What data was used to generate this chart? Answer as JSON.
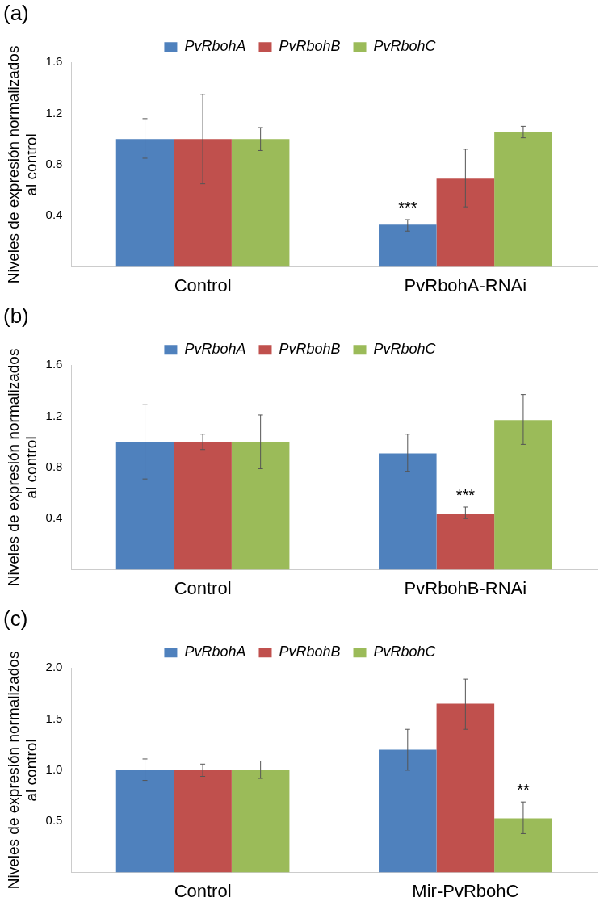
{
  "chart_data": [
    {
      "type": "bar",
      "title": "(a)",
      "ylabel": "Niveles de expresión normalizados al control",
      "categories": [
        "Control",
        "PvRbohA-RNAi"
      ],
      "series": [
        {
          "name": "PvRbohA",
          "color": "#4f81bd",
          "values": [
            1.0,
            0.33
          ],
          "errors": [
            [
              0.85,
              1.16
            ],
            [
              0.28,
              0.37
            ]
          ]
        },
        {
          "name": "PvRbohB",
          "color": "#c0504d",
          "values": [
            1.0,
            0.69
          ],
          "errors": [
            [
              0.65,
              1.35
            ],
            [
              0.47,
              0.92
            ]
          ]
        },
        {
          "name": "PvRbohC",
          "color": "#9bbb59",
          "values": [
            1.0,
            1.055
          ],
          "errors": [
            [
              0.91,
              1.09
            ],
            [
              1.01,
              1.1
            ]
          ]
        }
      ],
      "ylim": [
        0,
        1.6
      ],
      "yticks": [
        {
          "value": 0,
          "label": null
        },
        0.4,
        0.8,
        1.2,
        1.6
      ],
      "grid": false,
      "legend": "top",
      "annotations": [
        "***"
      ]
    },
    {
      "type": "bar",
      "title": "(b)",
      "ylabel": "Niveles de expresión normalizados al control",
      "categories": [
        "Control",
        "PvRbohB-RNAi"
      ],
      "series": [
        {
          "name": "PvRbohA",
          "color": "#4f81bd",
          "values": [
            1.0,
            0.91
          ],
          "errors": [
            [
              0.71,
              1.29
            ],
            [
              0.77,
              1.06
            ]
          ]
        },
        {
          "name": "PvRbohB",
          "color": "#c0504d",
          "values": [
            1.0,
            0.44
          ],
          "errors": [
            [
              0.94,
              1.06
            ],
            [
              0.4,
              0.49
            ]
          ]
        },
        {
          "name": "PvRbohC",
          "color": "#9bbb59",
          "values": [
            1.0,
            1.17
          ],
          "errors": [
            [
              0.79,
              1.21
            ],
            [
              0.98,
              1.37
            ]
          ]
        }
      ],
      "ylim": [
        0,
        1.6
      ],
      "yticks": [
        {
          "value": 0,
          "label": null
        },
        0.4,
        0.8,
        1.2,
        1.6
      ],
      "grid": false,
      "legend": "top",
      "annotations": [
        "***"
      ]
    },
    {
      "type": "bar",
      "title": "(c)",
      "ylabel": "Niveles de expresión normalizados al control",
      "categories": [
        "Control",
        "Mir-PvRbohC"
      ],
      "series": [
        {
          "name": "PvRbohA",
          "color": "#4f81bd",
          "values": [
            1.0,
            1.2
          ],
          "errors": [
            [
              0.9,
              1.11
            ],
            [
              1.0,
              1.4
            ]
          ]
        },
        {
          "name": "PvRbohB",
          "color": "#c0504d",
          "values": [
            1.0,
            1.65
          ],
          "errors": [
            [
              0.94,
              1.06
            ],
            [
              1.4,
              1.89
            ]
          ]
        },
        {
          "name": "PvRbohC",
          "color": "#9bbb59",
          "values": [
            1.0,
            0.53
          ],
          "errors": [
            [
              0.92,
              1.09
            ],
            [
              0.38,
              0.69
            ]
          ]
        }
      ],
      "ylim": [
        0,
        2.0
      ],
      "yticks": [
        {
          "value": 0,
          "label": null
        },
        {
          "value": 0.5,
          "label": "0.5"
        },
        {
          "value": 1.0,
          "label": "1.0"
        },
        {
          "value": 1.5,
          "label": "1.5"
        },
        {
          "value": 2.0,
          "label": "2.0"
        }
      ],
      "grid": false,
      "legend": "top",
      "annotations": [
        "**"
      ]
    }
  ]
}
